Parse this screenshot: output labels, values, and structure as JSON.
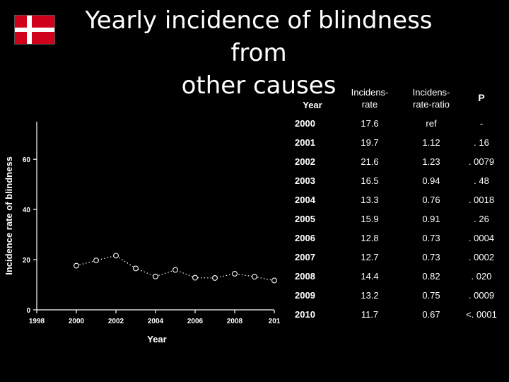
{
  "title": {
    "line1": "Yearly incidence of blindness from",
    "line2": "other causes"
  },
  "flag": {
    "colors": {
      "red": "#d0021b",
      "cross": "#ffffff"
    }
  },
  "chart_data": {
    "type": "line",
    "xlabel": "Year",
    "ylabel": "Incidence rate of blindness",
    "xlim": [
      1998,
      2010
    ],
    "ylim": [
      0,
      75
    ],
    "xticks": [
      "1998",
      "2000",
      "2002",
      "2004",
      "2006",
      "2008",
      "201"
    ],
    "xtick_values": [
      1998,
      2000,
      2002,
      2004,
      2006,
      2008,
      2010
    ],
    "yticks": [
      "0",
      "20",
      "40",
      "60"
    ],
    "ytick_values": [
      0,
      20,
      40,
      60
    ],
    "grid": false,
    "series": [
      {
        "x": [
          2000,
          2001,
          2002,
          2003,
          2004,
          2005,
          2006,
          2007,
          2008,
          2009,
          2010
        ],
        "values": [
          17.6,
          19.7,
          21.6,
          16.5,
          13.3,
          15.9,
          12.8,
          12.7,
          14.4,
          13.2,
          11.7
        ],
        "marker": "open-circle",
        "line_style": "dotted",
        "color": "#ffffff"
      }
    ]
  },
  "table": {
    "headers": {
      "year": "Year",
      "rate_l1": "Incidens-",
      "rate_l2": "rate",
      "ratio_l1": "Incidens-",
      "ratio_l2": "rate-ratio",
      "p": "P"
    },
    "rows": [
      {
        "year": "2000",
        "rate": "17.6",
        "ratio": "ref",
        "p": "-"
      },
      {
        "year": "2001",
        "rate": "19.7",
        "ratio": "1.12",
        "p": ". 16"
      },
      {
        "year": "2002",
        "rate": "21.6",
        "ratio": "1.23",
        "p": ". 0079"
      },
      {
        "year": "2003",
        "rate": "16.5",
        "ratio": "0.94",
        "p": ". 48"
      },
      {
        "year": "2004",
        "rate": "13.3",
        "ratio": "0.76",
        "p": ". 0018"
      },
      {
        "year": "2005",
        "rate": "15.9",
        "ratio": "0.91",
        "p": ". 26"
      },
      {
        "year": "2006",
        "rate": "12.8",
        "ratio": "0.73",
        "p": ". 0004"
      },
      {
        "year": "2007",
        "rate": "12.7",
        "ratio": "0.73",
        "p": ". 0002"
      },
      {
        "year": "2008",
        "rate": "14.4",
        "ratio": "0.82",
        "p": ". 020"
      },
      {
        "year": "2009",
        "rate": "13.2",
        "ratio": "0.75",
        "p": ". 0009"
      },
      {
        "year": "2010",
        "rate": "11.7",
        "ratio": "0.67",
        "p": "<. 0001"
      }
    ]
  }
}
